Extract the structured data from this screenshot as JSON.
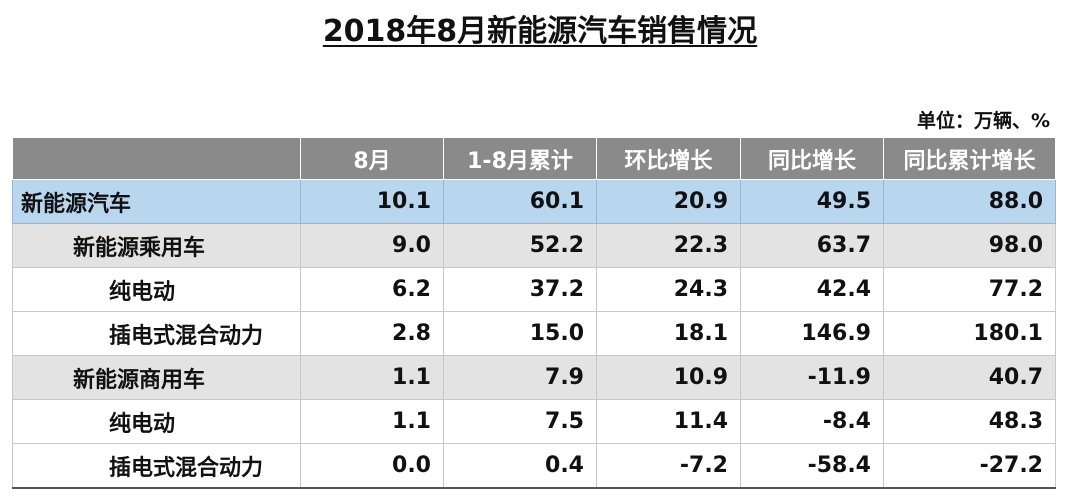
{
  "title": "2018年8月新能源汽车销售情况",
  "unit": "单位：万辆、%",
  "columns": [
    "",
    "8月",
    "1-8月累计",
    "环比增长",
    "同比增长",
    "同比累计增长"
  ],
  "rows": [
    {
      "label": "新能源汽车",
      "level": 0,
      "values": [
        "10.1",
        "60.1",
        "20.9",
        "49.5",
        "88.0"
      ]
    },
    {
      "label": "新能源乘用车",
      "level": 1,
      "values": [
        "9.0",
        "52.2",
        "22.3",
        "63.7",
        "98.0"
      ]
    },
    {
      "label": "纯电动",
      "level": 2,
      "values": [
        "6.2",
        "37.2",
        "24.3",
        "42.4",
        "77.2"
      ]
    },
    {
      "label": "插电式混合动力",
      "level": 2,
      "values": [
        "2.8",
        "15.0",
        "18.1",
        "146.9",
        "180.1"
      ]
    },
    {
      "label": "新能源商用车",
      "level": 1,
      "values": [
        "1.1",
        "7.9",
        "10.9",
        "-11.9",
        "40.7"
      ]
    },
    {
      "label": "纯电动",
      "level": 2,
      "values": [
        "1.1",
        "7.5",
        "11.4",
        "-8.4",
        "48.3"
      ]
    },
    {
      "label": "插电式混合动力",
      "level": 2,
      "values": [
        "0.0",
        "0.4",
        "-7.2",
        "-58.4",
        "-27.2"
      ]
    }
  ],
  "colors": {
    "header_bg": "#8a8a8a",
    "total_bg": "#b9d6ef",
    "category_bg": "#e3e3e3"
  }
}
